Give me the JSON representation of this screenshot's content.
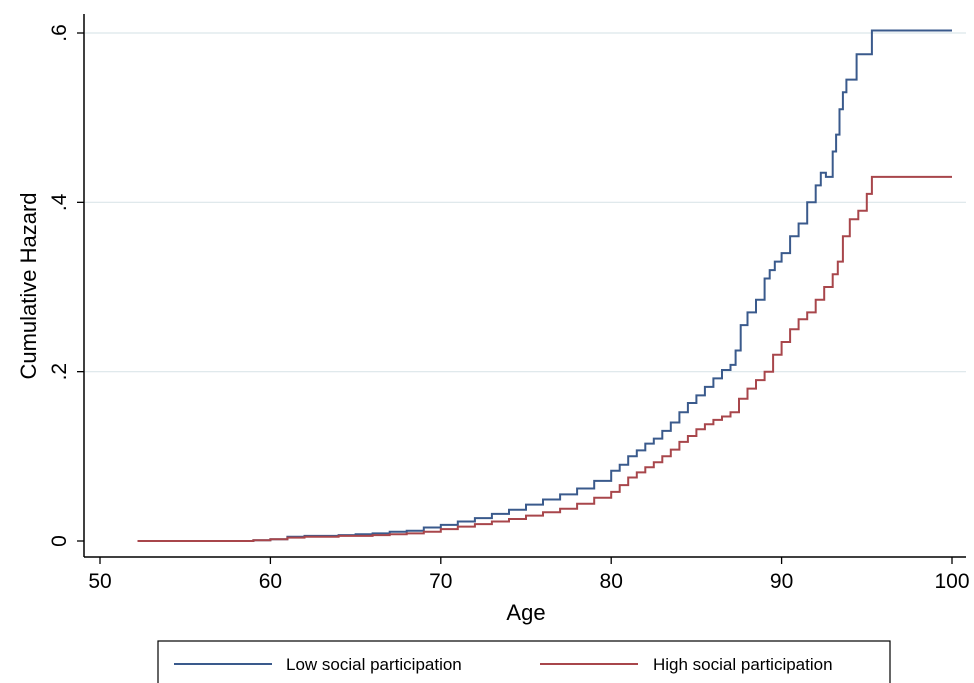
{
  "chart_data": {
    "type": "line",
    "step": true,
    "xlabel": "Age",
    "ylabel": "Cumulative Hazard",
    "xlim": [
      50,
      100
    ],
    "ylim": [
      0,
      0.6
    ],
    "x_ticks": [
      {
        "value": 50,
        "label": "50"
      },
      {
        "value": 60,
        "label": "60"
      },
      {
        "value": 70,
        "label": "70"
      },
      {
        "value": 80,
        "label": "80"
      },
      {
        "value": 90,
        "label": "90"
      },
      {
        "value": 100,
        "label": "100"
      }
    ],
    "y_ticks": [
      {
        "value": 0,
        "label": "0"
      },
      {
        "value": 0.2,
        "label": ".2"
      },
      {
        "value": 0.4,
        "label": ".4"
      },
      {
        "value": 0.6,
        "label": ".6"
      }
    ],
    "grid": "horizontal",
    "legend_position": "bottom",
    "colors": {
      "low": "#3a5a8c",
      "high": "#a8464b",
      "grid": "#dce6ea"
    },
    "series": [
      {
        "name": "Low social participation",
        "color": "#3a5a8c",
        "x": [
          52.2,
          57,
          59,
          60,
          61,
          62,
          63,
          64,
          65,
          66,
          67,
          68,
          69,
          70,
          71,
          72,
          73,
          74,
          75,
          76,
          77,
          78,
          79,
          80,
          80.5,
          81,
          81.5,
          82,
          82.5,
          83,
          83.5,
          84,
          84.5,
          85,
          85.5,
          86,
          86.5,
          87,
          87.3,
          87.6,
          88,
          88.5,
          89,
          89.3,
          89.6,
          90,
          90.5,
          91,
          91.5,
          92,
          92.3,
          92.6,
          93,
          93.2,
          93.4,
          93.6,
          93.8,
          94,
          94.4,
          95,
          95.3,
          100
        ],
        "y": [
          0,
          0,
          0.001,
          0.002,
          0.005,
          0.006,
          0.006,
          0.007,
          0.008,
          0.009,
          0.011,
          0.012,
          0.016,
          0.019,
          0.023,
          0.027,
          0.032,
          0.037,
          0.043,
          0.049,
          0.055,
          0.062,
          0.071,
          0.083,
          0.09,
          0.1,
          0.107,
          0.115,
          0.121,
          0.13,
          0.14,
          0.152,
          0.163,
          0.172,
          0.182,
          0.192,
          0.202,
          0.208,
          0.225,
          0.255,
          0.27,
          0.285,
          0.31,
          0.32,
          0.33,
          0.34,
          0.36,
          0.375,
          0.4,
          0.42,
          0.435,
          0.43,
          0.46,
          0.48,
          0.51,
          0.53,
          0.545,
          0.545,
          0.575,
          0.575,
          0.603,
          0.603
        ]
      },
      {
        "name": "High social participation",
        "color": "#a8464b",
        "x": [
          52.2,
          57,
          59,
          60,
          61,
          62,
          63,
          64,
          65,
          66,
          67,
          68,
          69,
          70,
          71,
          72,
          73,
          74,
          75,
          76,
          77,
          78,
          79,
          80,
          80.5,
          81,
          81.5,
          82,
          82.5,
          83,
          83.5,
          84,
          84.5,
          85,
          85.5,
          86,
          86.5,
          87,
          87.5,
          88,
          88.5,
          89,
          89.5,
          90,
          90.5,
          91,
          91.5,
          92,
          92.5,
          93,
          93.3,
          93.6,
          94,
          94.5,
          95,
          95.3,
          100
        ],
        "y": [
          0,
          0,
          0.001,
          0.002,
          0.004,
          0.005,
          0.005,
          0.006,
          0.006,
          0.007,
          0.008,
          0.009,
          0.011,
          0.014,
          0.017,
          0.02,
          0.023,
          0.026,
          0.03,
          0.034,
          0.038,
          0.044,
          0.051,
          0.058,
          0.066,
          0.075,
          0.081,
          0.087,
          0.093,
          0.1,
          0.108,
          0.117,
          0.124,
          0.132,
          0.138,
          0.143,
          0.147,
          0.152,
          0.168,
          0.18,
          0.19,
          0.2,
          0.22,
          0.235,
          0.25,
          0.262,
          0.27,
          0.285,
          0.3,
          0.315,
          0.33,
          0.36,
          0.38,
          0.39,
          0.41,
          0.43,
          0.43
        ]
      }
    ]
  }
}
